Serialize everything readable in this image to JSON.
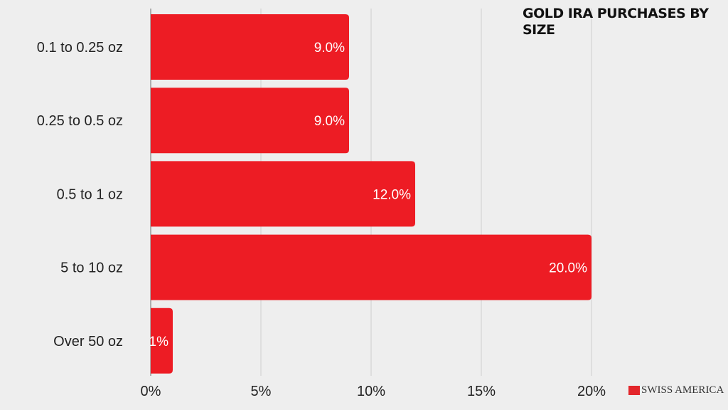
{
  "chart_data": {
    "type": "bar",
    "orientation": "horizontal",
    "title": "GOLD IRA PURCHASES BY SIZE",
    "categories": [
      "0.1 to 0.25 oz",
      "0.25 to 0.5 oz",
      "0.5 to 1 oz",
      "5 to 10 oz",
      "Over 50 oz"
    ],
    "values": [
      9.0,
      9.0,
      12.0,
      20.0,
      1
    ],
    "data_labels": [
      "9.0%",
      "9.0%",
      "12.0%",
      "20.0%",
      "1%"
    ],
    "xlim": [
      0,
      20
    ],
    "x_ticks": [
      0,
      5,
      10,
      15,
      20
    ],
    "x_tick_labels": [
      "0%",
      "5%",
      "10%",
      "15%",
      "20%"
    ],
    "grid": true,
    "bar_color": "#ed1c24",
    "background": "#eeeeee"
  },
  "logo": {
    "text": "SWISS AMERICA"
  }
}
